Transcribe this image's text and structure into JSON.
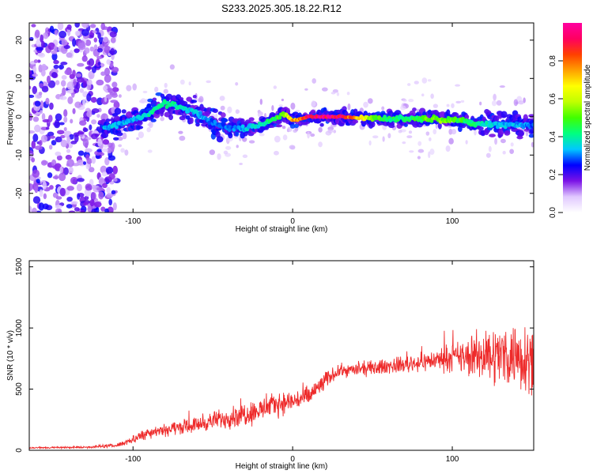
{
  "figure": {
    "title": "S233.2025.305.18.22.R12"
  },
  "colors": {
    "signal_red": "#ee2b2b",
    "noise_purple": "#7b12e6",
    "axis": "#000000"
  },
  "colorbar": {
    "label": "Normalized spectral amplitude",
    "range": [
      0,
      1
    ],
    "ticks": [
      0.0,
      0.2,
      0.4,
      0.6,
      0.8
    ],
    "tick_labels": [
      "0.0",
      "0.2",
      "0.4",
      "0.6",
      "0.8"
    ],
    "colormap": [
      "#ffffff",
      "#e0c8ff",
      "#7b12e6",
      "#0000ff",
      "#00c8ff",
      "#00ff80",
      "#40ff00",
      "#c0ff00",
      "#ffff00",
      "#ffa000",
      "#ff4000",
      "#ff0060",
      "#ff00a0"
    ]
  },
  "chart_data": [
    {
      "type": "heatmap",
      "name": "spectrogram",
      "title": "S233.2025.305.18.22.R12",
      "xlabel": "Height of straight line (km)",
      "ylabel": "Frequency (Hz)",
      "xlim": [
        -165,
        151
      ],
      "ylim": [
        -25,
        24.5
      ],
      "xticks": [
        -100,
        0,
        100
      ],
      "xtick_labels": [
        "-100",
        "0",
        "100"
      ],
      "yticks": [
        -20,
        -10,
        0,
        10,
        20
      ],
      "ytick_labels": [
        "-20",
        "-10",
        "0",
        "10",
        "20"
      ],
      "ridge": {
        "x": [
          -120,
          -110,
          -100,
          -90,
          -80,
          -70,
          -60,
          -50,
          -40,
          -30,
          -20,
          -10,
          -5,
          0,
          10,
          20,
          30,
          40,
          50,
          60,
          70,
          80,
          90,
          100,
          110,
          120,
          130,
          140,
          151
        ],
        "y": [
          -3.5,
          -2,
          -1,
          1,
          3.5,
          2.5,
          1,
          -1.5,
          -3,
          -3,
          -2,
          -0.5,
          1,
          -1,
          0,
          0,
          0,
          -0.3,
          -0.3,
          -0.5,
          -0.5,
          -0.5,
          -0.5,
          -0.7,
          -1.5,
          -2,
          -2,
          -2,
          -2.5
        ],
        "amplitude": [
          0.35,
          0.35,
          0.35,
          0.4,
          0.45,
          0.4,
          0.35,
          0.3,
          0.3,
          0.35,
          0.4,
          0.5,
          0.6,
          0.75,
          0.95,
          1.0,
          0.95,
          0.75,
          0.55,
          0.45,
          0.45,
          0.5,
          0.55,
          0.55,
          0.45,
          0.4,
          0.35,
          0.35,
          0.3
        ]
      },
      "noise_region_x": [
        -165,
        -118
      ]
    },
    {
      "type": "line",
      "name": "snr",
      "xlabel": "Height of straight line (km)",
      "ylabel": "SNR (10 * v/v)",
      "xlim": [
        -165,
        151
      ],
      "ylim": [
        0,
        1550
      ],
      "xticks": [
        -100,
        0,
        100
      ],
      "xtick_labels": [
        "-100",
        "0",
        "100"
      ],
      "yticks": [
        0,
        500,
        1000,
        1500
      ],
      "ytick_labels": [
        "0",
        "500",
        "1000",
        "1500"
      ],
      "series": [
        {
          "name": "SNR",
          "color": "#ee2b2b",
          "envelope": {
            "x": [
              -165,
              -130,
              -110,
              -100,
              -90,
              -80,
              -70,
              -60,
              -50,
              -40,
              -30,
              -20,
              -10,
              0,
              10,
              20,
              25,
              30,
              40,
              50,
              60,
              70,
              80,
              90,
              100,
              110,
              120,
              130,
              140,
              145,
              151
            ],
            "mean": [
              20,
              25,
              40,
              90,
              150,
              170,
              190,
              210,
              240,
              270,
              300,
              330,
              380,
              400,
              440,
              560,
              620,
              650,
              660,
              670,
              690,
              700,
              720,
              740,
              760,
              760,
              780,
              780,
              780,
              770,
              760
            ],
            "spread": [
              12,
              15,
              25,
              60,
              80,
              90,
              90,
              100,
              120,
              140,
              170,
              160,
              150,
              150,
              150,
              130,
              90,
              80,
              90,
              100,
              100,
              110,
              120,
              140,
              180,
              250,
              350,
              400,
              450,
              500,
              400
            ]
          }
        }
      ]
    }
  ]
}
